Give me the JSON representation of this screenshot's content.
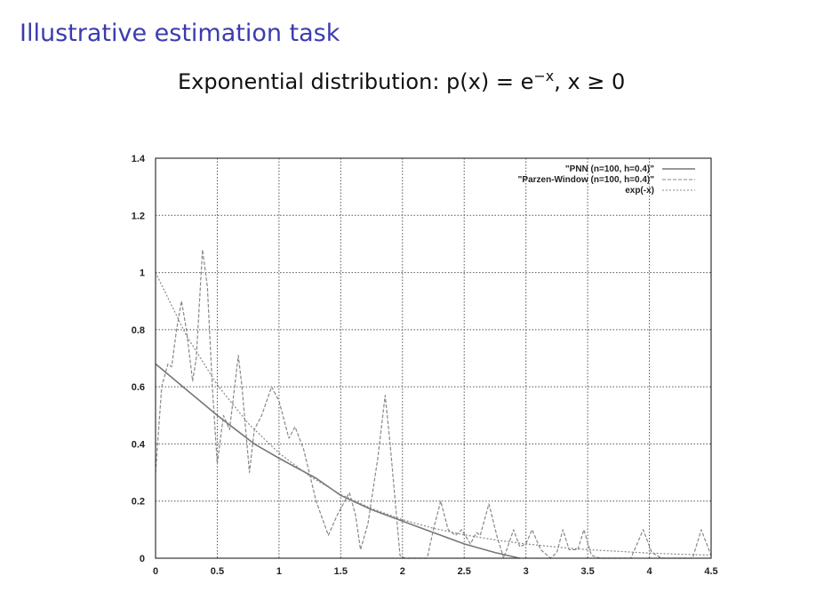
{
  "slide": {
    "title": "Illustrative estimation task",
    "subtitle": "Exponential distribution:  p(x) = e^{-x},   x ≥ 0"
  },
  "chart_data": {
    "type": "line",
    "title": "",
    "xlabel": "",
    "ylabel": "",
    "xlim": [
      0,
      4.5
    ],
    "ylim": [
      0,
      1.4
    ],
    "xticks": [
      "0",
      "0.5",
      "1",
      "1.5",
      "2",
      "2.5",
      "3",
      "3.5",
      "4",
      "4.5"
    ],
    "yticks": [
      "0",
      "0.2",
      "0.4",
      "0.6",
      "0.8",
      "1",
      "1.2",
      "1.4"
    ],
    "grid": true,
    "legend_position": "top-right",
    "series": [
      {
        "name": "\"PNN (n=100, h=0.4)\"",
        "style": "solid",
        "color": "#777777",
        "x": [
          0,
          0.25,
          0.5,
          0.8,
          1.0,
          1.3,
          1.5,
          1.75,
          2.0,
          2.25,
          2.5,
          2.75,
          2.95
        ],
        "y": [
          0.68,
          0.59,
          0.5,
          0.4,
          0.35,
          0.28,
          0.22,
          0.17,
          0.13,
          0.09,
          0.05,
          0.02,
          0
        ]
      },
      {
        "name": "\"Parzen-Window (n=100, h=0.4)\"",
        "style": "dashed",
        "color": "#888888",
        "x": [
          0,
          0.05,
          0.1,
          0.13,
          0.17,
          0.21,
          0.25,
          0.3,
          0.33,
          0.38,
          0.42,
          0.46,
          0.5,
          0.55,
          0.6,
          0.67,
          0.7,
          0.76,
          0.8,
          0.86,
          0.94,
          1.0,
          1.08,
          1.13,
          1.2,
          1.3,
          1.4,
          1.47,
          1.57,
          1.62,
          1.66,
          1.72,
          1.8,
          1.86,
          1.9,
          1.98,
          2.02,
          2.2,
          2.25,
          2.31,
          2.37,
          2.43,
          2.48,
          2.55,
          2.6,
          2.63,
          2.7,
          2.77,
          2.82,
          2.9,
          2.95,
          3.0,
          3.05,
          3.12,
          3.2,
          3.25,
          3.3,
          3.35,
          3.42,
          3.47,
          3.53,
          3.6,
          3.85,
          3.95,
          4.02,
          4.1,
          4.35,
          4.42,
          4.5
        ],
        "y": [
          0.3,
          0.6,
          0.68,
          0.67,
          0.8,
          0.9,
          0.8,
          0.62,
          0.7,
          1.08,
          0.95,
          0.6,
          0.33,
          0.5,
          0.45,
          0.71,
          0.6,
          0.3,
          0.45,
          0.5,
          0.6,
          0.55,
          0.42,
          0.46,
          0.38,
          0.2,
          0.08,
          0.15,
          0.23,
          0.15,
          0.03,
          0.12,
          0.35,
          0.57,
          0.4,
          0.01,
          0,
          0,
          0.1,
          0.2,
          0.1,
          0.08,
          0.1,
          0.05,
          0.09,
          0.08,
          0.19,
          0.07,
          0,
          0.1,
          0.04,
          0.05,
          0.1,
          0.03,
          0,
          0.02,
          0.1,
          0.03,
          0.03,
          0.1,
          0.01,
          0,
          0,
          0.1,
          0.02,
          0,
          0,
          0.1,
          0.01
        ]
      },
      {
        "name": "exp(-x)",
        "style": "dotted",
        "color": "#888888",
        "x": [
          0,
          0.25,
          0.5,
          0.75,
          1,
          1.25,
          1.5,
          1.75,
          2,
          2.25,
          2.5,
          2.75,
          3,
          3.25,
          3.5,
          3.75,
          4,
          4.25,
          4.5
        ],
        "y": [
          1,
          0.779,
          0.607,
          0.472,
          0.368,
          0.287,
          0.223,
          0.174,
          0.135,
          0.105,
          0.082,
          0.064,
          0.05,
          0.039,
          0.03,
          0.024,
          0.018,
          0.014,
          0.011
        ]
      }
    ]
  }
}
